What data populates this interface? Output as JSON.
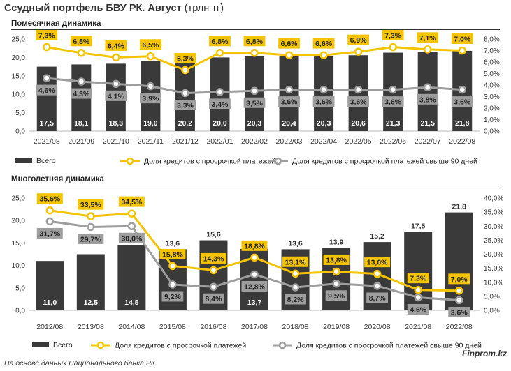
{
  "title": "Ссудный портфель БВУ РК. Август",
  "title_unit": "(трлн тг)",
  "footer": "На основе данных Национального банка РК",
  "brand": "Finprom.kz",
  "colors": {
    "bar": "#3a3a3a",
    "overdue": "#f5c400",
    "overdue90": "#9e9e9e",
    "bar_label": "#ffffff"
  },
  "chart_data": [
    {
      "id": "monthly",
      "section_title": "Помесячная динамика",
      "type": "bar",
      "categories": [
        "2021/08",
        "2021/09",
        "2021/10",
        "2021/11",
        "2021/12",
        "2022/01",
        "2022/02",
        "2022/03",
        "2022/04",
        "2022/05",
        "2022/06",
        "2022/07",
        "2022/08"
      ],
      "ylim": [
        0,
        25
      ],
      "yticks": [
        0,
        5,
        10,
        15,
        20,
        25
      ],
      "ytick_labels": [
        "0,0",
        "5,0",
        "10,0",
        "15,0",
        "20,0",
        "25,0"
      ],
      "y2lim": [
        0,
        8
      ],
      "y2ticks": [
        0,
        1,
        2,
        3,
        4,
        5,
        6,
        7,
        8
      ],
      "y2tick_labels": [
        "0,0%",
        "1,0%",
        "2,0%",
        "3,0%",
        "4,0%",
        "5,0%",
        "6,0%",
        "7,0%",
        "8,0%"
      ],
      "series": [
        {
          "name": "Всего",
          "type": "bar",
          "axis": "left",
          "values": [
            17.5,
            18.1,
            18.3,
            19.0,
            20.2,
            20.0,
            20.3,
            20.4,
            20.3,
            20.6,
            21.3,
            21.5,
            21.8
          ],
          "labels": [
            "17,5",
            "18,1",
            "18,3",
            "19,0",
            "20,2",
            "20,0",
            "20,3",
            "20,4",
            "20,3",
            "20,6",
            "21,3",
            "21,5",
            "21,8"
          ]
        },
        {
          "name": "Доля кредитов с просрочкой платежей",
          "type": "line",
          "axis": "right",
          "values": [
            7.3,
            6.8,
            6.4,
            6.5,
            5.3,
            6.8,
            6.8,
            6.6,
            6.6,
            6.9,
            7.3,
            7.1,
            7.0
          ],
          "labels": [
            "7,3%",
            "6,8%",
            "6,4%",
            "6,5%",
            "5,3%",
            "6,8%",
            "6,8%",
            "6,6%",
            "6,6%",
            "6,9%",
            "7,3%",
            "7,1%",
            "7,0%"
          ]
        },
        {
          "name": "Доля кредитов с просрочкой платежей свыше 90 дней",
          "type": "line",
          "axis": "right",
          "values": [
            4.6,
            4.3,
            4.1,
            3.9,
            3.3,
            3.4,
            3.5,
            3.6,
            3.6,
            3.6,
            3.6,
            3.8,
            3.6
          ],
          "labels": [
            "4,6%",
            "4,3%",
            "4,1%",
            "3,9%",
            "3,3%",
            "3,4%",
            "3,5%",
            "3,6%",
            "3,6%",
            "3,6%",
            "3,6%",
            "3,8%",
            "3,6%"
          ]
        }
      ]
    },
    {
      "id": "yearly",
      "section_title": "Многолетняя динамика",
      "type": "bar",
      "categories": [
        "2012/08",
        "2013/08",
        "2014/08",
        "2015/08",
        "2016/08",
        "2017/08",
        "2018/08",
        "2019/08",
        "2020/08",
        "2021/08",
        "2022/08"
      ],
      "ylim": [
        0,
        25
      ],
      "yticks": [
        0,
        5,
        10,
        15,
        20,
        25
      ],
      "ytick_labels": [
        "0,0",
        "5,0",
        "10,0",
        "15,0",
        "20,0",
        "25,0"
      ],
      "y2lim": [
        0,
        40
      ],
      "y2ticks": [
        0,
        5,
        10,
        15,
        20,
        25,
        30,
        35,
        40
      ],
      "y2tick_labels": [
        "0,0%",
        "5,0%",
        "10,0%",
        "15,0%",
        "20,0%",
        "25,0%",
        "30,0%",
        "35,0%",
        "40,0%"
      ],
      "series": [
        {
          "name": "Всего",
          "type": "bar",
          "axis": "left",
          "values": [
            11.0,
            12.5,
            14.5,
            13.6,
            15.6,
            13.7,
            13.6,
            13.9,
            15.2,
            17.5,
            21.8
          ],
          "labels": [
            "11,0",
            "12,5",
            "14,5",
            "13,6",
            "15,6",
            "13,7",
            "13,6",
            "13,9",
            "15,2",
            "17,5",
            "21,8"
          ]
        },
        {
          "name": "Доля кредитов с просрочкой платежей",
          "type": "line",
          "axis": "right",
          "values": [
            35.6,
            33.5,
            34.5,
            15.8,
            14.3,
            18.8,
            13.1,
            13.8,
            13.0,
            7.3,
            7.0
          ],
          "labels": [
            "35,6%",
            "33,5%",
            "34,5%",
            "15,8%",
            "14,3%",
            "18,8%",
            "13,1%",
            "13,8%",
            "13,0%",
            "7,3%",
            "7,0%"
          ]
        },
        {
          "name": "Доля кредитов с просрочкой платежей свыше 90 дней",
          "type": "line",
          "axis": "right",
          "values": [
            31.7,
            29.7,
            30.0,
            9.2,
            8.4,
            12.8,
            8.2,
            9.5,
            8.7,
            4.6,
            3.6
          ],
          "labels": [
            "31,7%",
            "29,7%",
            "30,0%",
            "9,2%",
            "8,4%",
            "12,8%",
            "8,2%",
            "9,5%",
            "8,7%",
            "4,6%",
            "3,6%"
          ]
        }
      ]
    }
  ]
}
